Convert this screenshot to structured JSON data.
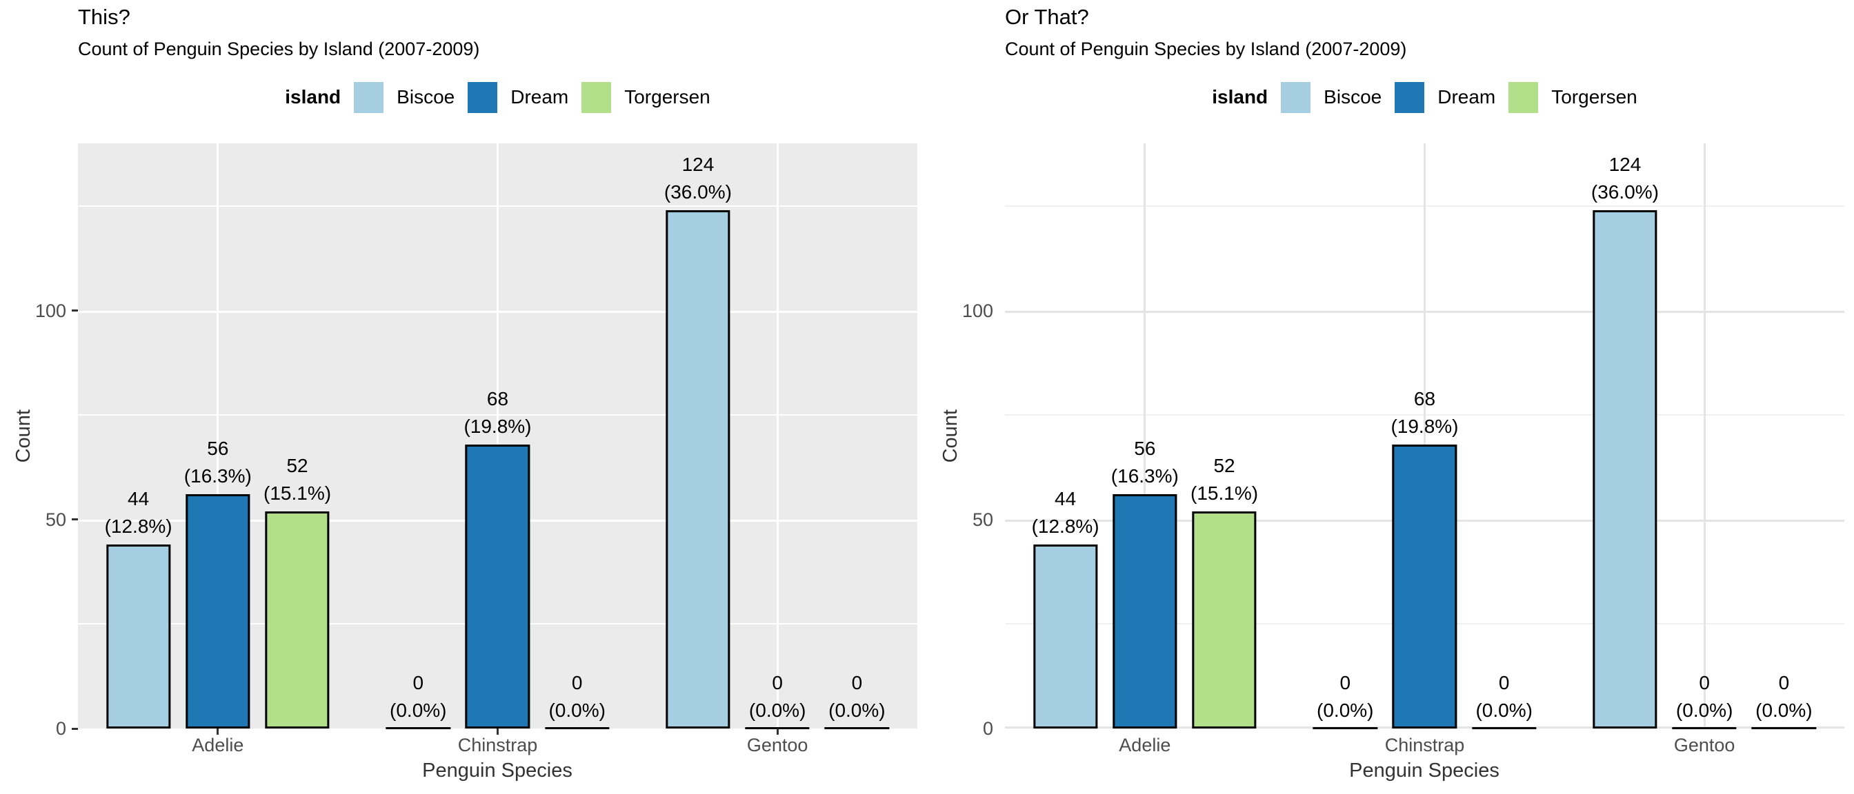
{
  "colors": {
    "biscoe": "#A6CEE3",
    "dream": "#1F78B4",
    "torgersen": "#B2DF8A",
    "axis_text": "#4d4d4d",
    "gray_panel_bg": "#EBEBEB"
  },
  "chart_data": [
    {
      "type": "bar",
      "title": "This?",
      "subtitle": "Count of Penguin Species by Island (2007-2009)",
      "xlabel": "Penguin Species",
      "ylabel": "Count",
      "legend_title": "island",
      "legend_position": "top",
      "theme": "gray",
      "panel_bg": "#EBEBEB",
      "grid_major": "#FFFFFF",
      "grid_minor": "#FFFFFF",
      "axis_ticks": true,
      "baseline_gridline": false,
      "grid": true,
      "categories": [
        "Adelie",
        "Chinstrap",
        "Gentoo"
      ],
      "series": [
        {
          "name": "Biscoe",
          "color": "#A6CEE3",
          "values": [
            44,
            0,
            124
          ],
          "bar_labels": [
            [
              "44",
              "(12.8%)"
            ],
            [
              "0",
              "(0.0%)"
            ],
            [
              "124",
              "(36.0%)"
            ]
          ]
        },
        {
          "name": "Dream",
          "color": "#1F78B4",
          "values": [
            56,
            68,
            0
          ],
          "bar_labels": [
            [
              "56",
              "(16.3%)"
            ],
            [
              "68",
              "(19.8%)"
            ],
            [
              "0",
              "(0.0%)"
            ]
          ]
        },
        {
          "name": "Torgersen",
          "color": "#B2DF8A",
          "values": [
            52,
            0,
            0
          ],
          "bar_labels": [
            [
              "52",
              "(15.1%)"
            ],
            [
              "0",
              "(0.0%)"
            ],
            [
              "0",
              "(0.0%)"
            ]
          ]
        }
      ],
      "y_ticks": [
        0,
        50,
        100
      ],
      "y_minor": [
        25,
        75,
        125
      ],
      "ylim": [
        0,
        140
      ]
    },
    {
      "type": "bar",
      "title": "Or That?",
      "subtitle": "Count of Penguin Species by Island (2007-2009)",
      "xlabel": "Penguin Species",
      "ylabel": "Count",
      "legend_title": "island",
      "legend_position": "top",
      "theme": "minimal",
      "panel_bg": "#FFFFFF",
      "grid_major": "#E4E4E4",
      "grid_minor": "#F0F0F0",
      "axis_ticks": false,
      "baseline_gridline": true,
      "grid": true,
      "categories": [
        "Adelie",
        "Chinstrap",
        "Gentoo"
      ],
      "series": [
        {
          "name": "Biscoe",
          "color": "#A6CEE3",
          "values": [
            44,
            0,
            124
          ],
          "bar_labels": [
            [
              "44",
              "(12.8%)"
            ],
            [
              "0",
              "(0.0%)"
            ],
            [
              "124",
              "(36.0%)"
            ]
          ]
        },
        {
          "name": "Dream",
          "color": "#1F78B4",
          "values": [
            56,
            68,
            0
          ],
          "bar_labels": [
            [
              "56",
              "(16.3%)"
            ],
            [
              "68",
              "(19.8%)"
            ],
            [
              "0",
              "(0.0%)"
            ]
          ]
        },
        {
          "name": "Torgersen",
          "color": "#B2DF8A",
          "values": [
            52,
            0,
            0
          ],
          "bar_labels": [
            [
              "52",
              "(15.1%)"
            ],
            [
              "0",
              "(0.0%)"
            ],
            [
              "0",
              "(0.0%)"
            ]
          ]
        }
      ],
      "y_ticks": [
        0,
        50,
        100
      ],
      "y_minor": [
        25,
        75,
        125
      ],
      "ylim": [
        0,
        140
      ]
    }
  ]
}
